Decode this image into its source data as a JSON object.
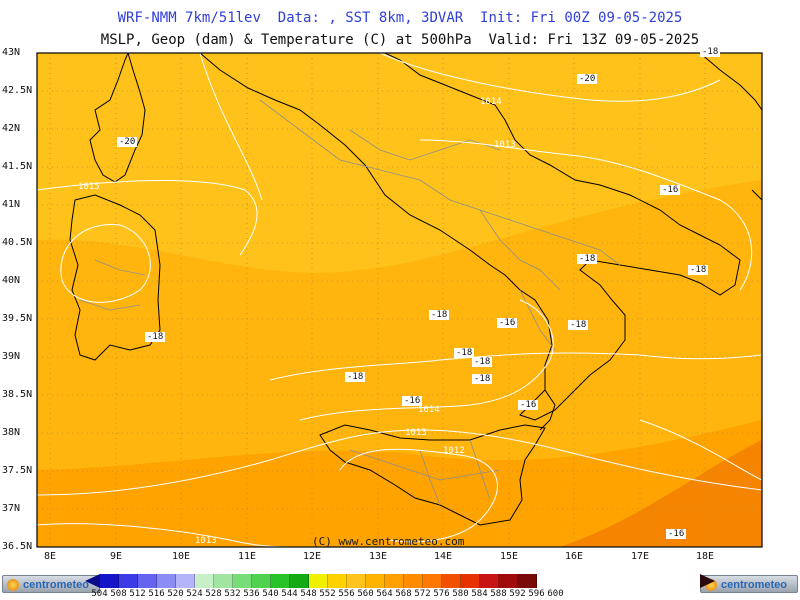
{
  "title_line1": "WRF-NMM 7km/51lev  Data: , SST 8km, 3DVAR  Init: Fri 00Z 09-05-2025",
  "title_line2": "MSLP, Geop (dam) & Temperature (C) at 500hPa  Valid: Fri 13Z 09-05-2025",
  "lat_labels": [
    "43N",
    "42.5N",
    "42N",
    "41.5N",
    "41N",
    "40.5N",
    "40N",
    "39.5N",
    "39N",
    "38.5N",
    "38N",
    "37.5N",
    "37N",
    "36.5N"
  ],
  "lon_labels": [
    "8E",
    "9E",
    "10E",
    "11E",
    "12E",
    "13E",
    "14E",
    "15E",
    "16E",
    "17E",
    "18E"
  ],
  "temperature_labels": [
    "-20",
    "-20",
    "-16",
    "-18",
    "-18",
    "-18",
    "-18",
    "-16",
    "-18",
    "-18",
    "-18",
    "-18",
    "-18",
    "-16",
    "-16",
    "-18",
    "-16"
  ],
  "pressure_labels": [
    "1015",
    "1014",
    "1013",
    "1014",
    "1013",
    "1012",
    "1013"
  ],
  "copyright": "(C) www.centrometeo.com",
  "logo_text": "centrometeo",
  "scale": {
    "values": [
      "504",
      "508",
      "512",
      "516",
      "520",
      "524",
      "528",
      "532",
      "536",
      "540",
      "544",
      "548",
      "552",
      "556",
      "560",
      "564",
      "568",
      "572",
      "576",
      "580",
      "584",
      "588",
      "592",
      "596",
      "600"
    ],
    "colors": [
      "#08088c",
      "#1414c8",
      "#3c3ce6",
      "#6464f0",
      "#8c8cf5",
      "#b4b4fa",
      "#c8f0c8",
      "#a0e6a0",
      "#78dc78",
      "#50d250",
      "#28c328",
      "#14aa14",
      "#f0f000",
      "#ffd200",
      "#ffc31e",
      "#ffb400",
      "#ffa000",
      "#ff8c00",
      "#ff7800",
      "#f05000",
      "#e63200",
      "#c81414",
      "#a00a0a",
      "#780a0a",
      "#3c0a0a"
    ]
  },
  "colors": {
    "field_light": "#ffc21a",
    "field_mid": "#ffb30a",
    "field_dark": "#ff9d00",
    "field_deep": "#f37e00",
    "land_outline": "#000000",
    "border": "#9a9a9a",
    "isobar": "#ffffff"
  }
}
